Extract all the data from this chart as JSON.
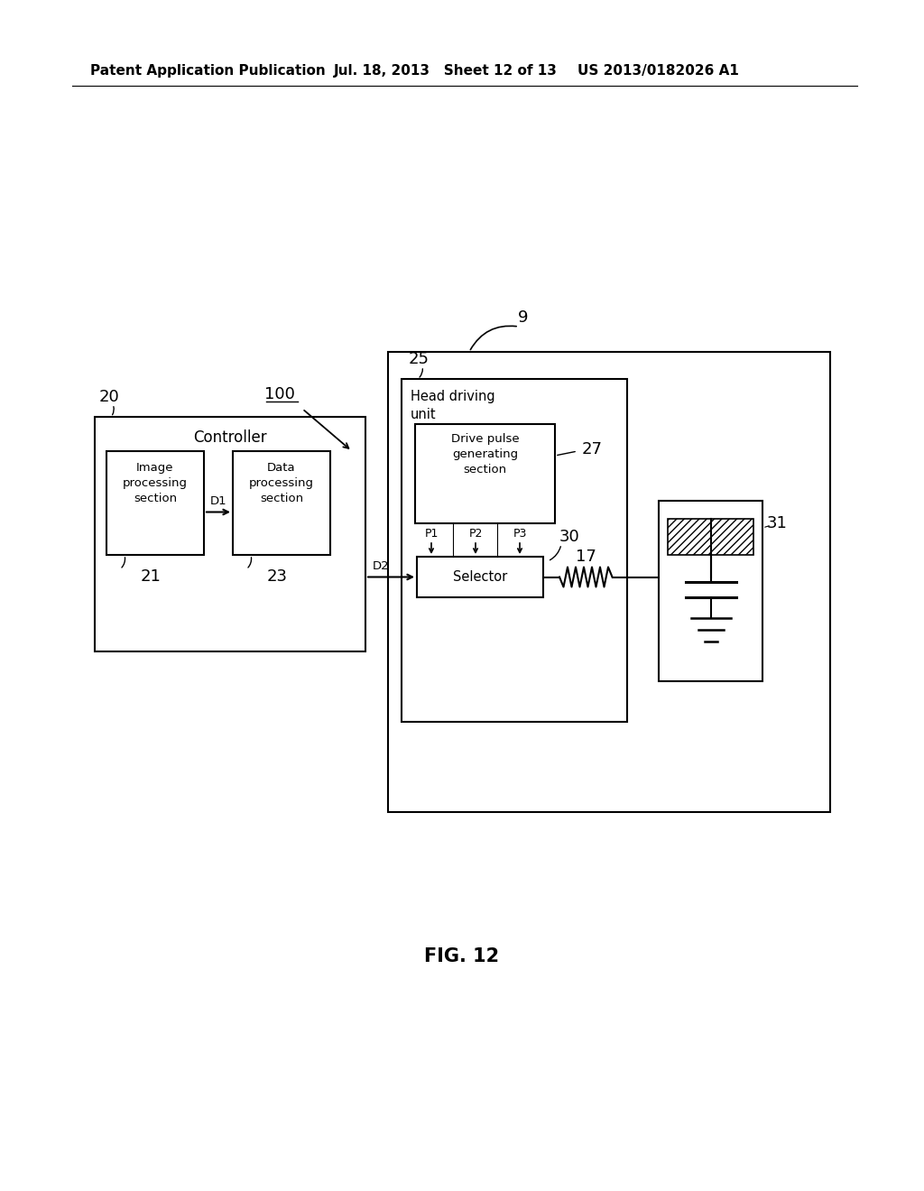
{
  "bg_color": "#ffffff",
  "header_left": "Patent Application Publication",
  "header_mid": "Jul. 18, 2013   Sheet 12 of 13",
  "header_right": "US 2013/0182026 A1",
  "fig_label": "FIG. 12",
  "label_9": "9",
  "label_100": "100",
  "label_20": "20",
  "label_21": "21",
  "label_23": "23",
  "label_25": "25",
  "label_27": "27",
  "label_30": "30",
  "label_17": "17",
  "label_31": "31",
  "label_D1": "D1",
  "label_D2": "D2",
  "label_P1": "P1",
  "label_P2": "P2",
  "label_P3": "P3",
  "txt_controller": "Controller",
  "txt_image_proc": "Image\nprocessing\nsection",
  "txt_data_proc": "Data\nprocessing\nsection",
  "txt_head_driving": "Head driving\nunit",
  "txt_drive_pulse": "Drive pulse\ngenerating\nsection",
  "txt_selector": "Selector"
}
